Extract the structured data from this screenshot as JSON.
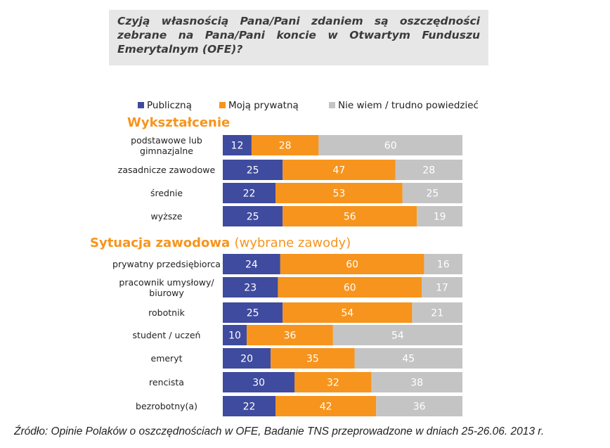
{
  "title": "Czyją własnością Pana/Pani zdaniem są oszczędności zebrane na Pana/Pani koncie w Otwartym Funduszu Emerytalnym (OFE)?",
  "legend": [
    {
      "label": "Publiczną",
      "color": "#3f4b9e"
    },
    {
      "label": "Moją prywatną",
      "color": "#f7941d"
    },
    {
      "label": "Nie wiem / trudno powiedzieć",
      "color": "#c4c4c4"
    }
  ],
  "sections": [
    {
      "title": "Wykształcenie",
      "subtitle": ""
    },
    {
      "title": "Sytuacja zawodowa",
      "subtitle": "(wybrane zawody)"
    }
  ],
  "footer": "Źródło: Opinie Polaków o oszczędnościach w OFE, Badanie TNS przeprowadzone w dniach 25-26.06. 2013 r.",
  "chart_data": {
    "type": "bar",
    "orientation": "horizontal",
    "stacked": true,
    "normalized": true,
    "series_names": [
      "Publiczną",
      "Moją prywatną",
      "Nie wiem / trudno powiedzieć"
    ],
    "groups": [
      {
        "name": "Wykształcenie",
        "categories": [
          "podstawowe lub\ngimnazjalne",
          "zasadnicze zawodowe",
          "średnie",
          "wyższe"
        ],
        "values": [
          [
            12,
            28,
            60
          ],
          [
            25,
            47,
            28
          ],
          [
            22,
            53,
            25
          ],
          [
            25,
            56,
            19
          ]
        ]
      },
      {
        "name": "Sytuacja zawodowa (wybrane zawody)",
        "categories": [
          "prywatny przedsiębiorca",
          "pracownik umysłowy/\nbiurowy",
          "robotnik",
          "student / uczeń",
          "emeryt",
          "rencista",
          "bezrobotny(a)"
        ],
        "values": [
          [
            24,
            60,
            16
          ],
          [
            23,
            60,
            17
          ],
          [
            25,
            54,
            21
          ],
          [
            10,
            36,
            54
          ],
          [
            20,
            35,
            45
          ],
          [
            30,
            32,
            38
          ],
          [
            22,
            42,
            36
          ]
        ]
      }
    ],
    "xlim": [
      0,
      100
    ]
  }
}
